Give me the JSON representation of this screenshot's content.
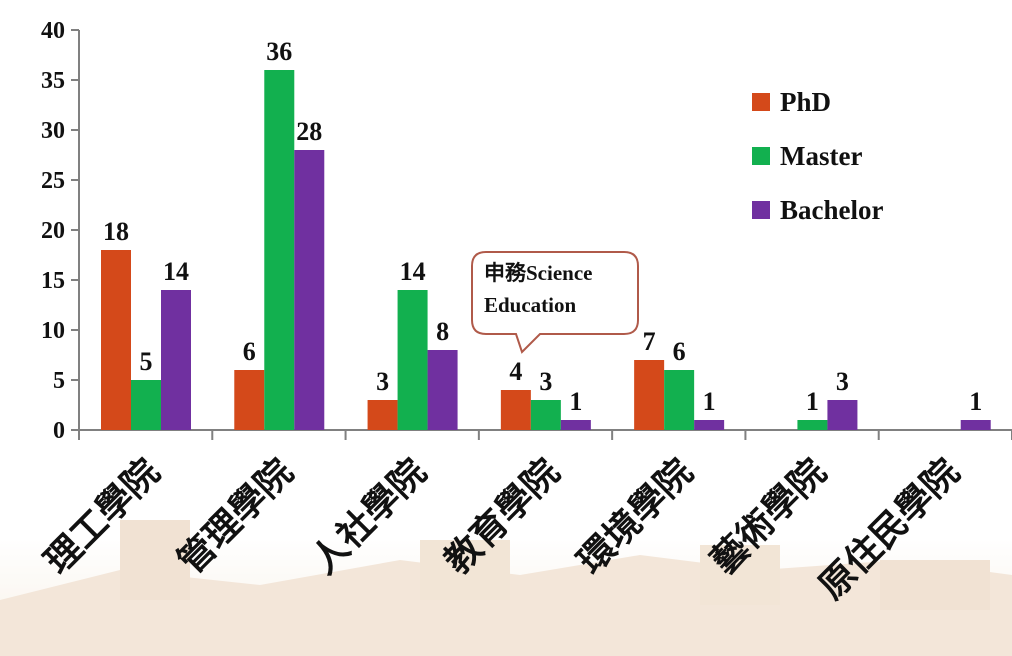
{
  "chart_data": {
    "type": "bar",
    "categories": [
      "理工學院",
      "管理學院",
      "人社學院",
      "教育學院",
      "環境學院",
      "藝術學院",
      "原住民學院"
    ],
    "series": [
      {
        "name": "PhD",
        "color": "#d4491a",
        "values": [
          18,
          6,
          3,
          4,
          7,
          0,
          0
        ],
        "labels": [
          "18",
          "6",
          "3",
          "4",
          "7",
          "",
          ""
        ]
      },
      {
        "name": "Master",
        "color": "#12b04f",
        "values": [
          5,
          36,
          14,
          3,
          6,
          1,
          0
        ],
        "labels": [
          "5",
          "36",
          "14",
          "3",
          "6",
          "1",
          ""
        ]
      },
      {
        "name": "Bachelor",
        "color": "#7030a0",
        "values": [
          14,
          28,
          8,
          1,
          1,
          3,
          1
        ],
        "labels": [
          "14",
          "28",
          "8",
          "1",
          "1",
          "3",
          "1"
        ]
      }
    ],
    "ylim": [
      0,
      40
    ],
    "yticks": [
      "0",
      "5",
      "10",
      "15",
      "20",
      "25",
      "30",
      "35",
      "40"
    ],
    "legend_position": "top-right",
    "grid": false,
    "annotation": {
      "line1": "申務Science",
      "line2": "Education"
    }
  }
}
